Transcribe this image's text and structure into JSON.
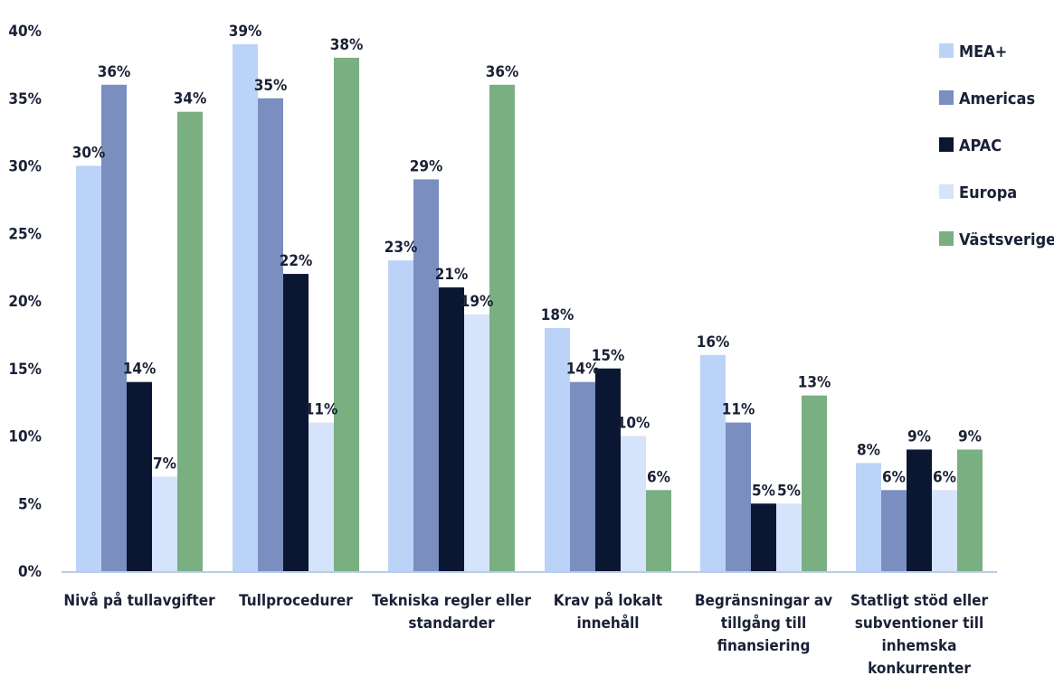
{
  "chart_data": {
    "type": "bar",
    "title": "",
    "xlabel": "",
    "ylabel": "",
    "ylim": [
      0,
      40
    ],
    "yticks": [
      "0%",
      "5%",
      "10%",
      "15%",
      "20%",
      "25%",
      "30%",
      "35%",
      "40%"
    ],
    "grid": false,
    "legend_position": "right",
    "categories": [
      "Nivå på tullavgifter",
      "Tullprocedurer",
      "Tekniska regler eller standarder",
      "Krav på lokalt innehåll",
      "Begränsningar av tillgång till finansiering",
      "Statligt stöd eller subventioner till inhemska konkurrenter"
    ],
    "category_lines": [
      [
        "Nivå på tullavgifter"
      ],
      [
        "Tullprocedurer"
      ],
      [
        "Tekniska regler eller",
        "standarder"
      ],
      [
        "Krav på lokalt",
        "innehåll"
      ],
      [
        "Begränsningar av",
        "tillgång till",
        "finansiering"
      ],
      [
        "Statligt stöd eller",
        "subventioner till",
        "inhemska",
        "konkurrenter"
      ]
    ],
    "series": [
      {
        "name": "MEA+",
        "color": "#bcd3f8",
        "values": [
          30,
          39,
          23,
          18,
          16,
          8
        ]
      },
      {
        "name": "Americas",
        "color": "#7a8fbf",
        "values": [
          36,
          35,
          29,
          14,
          11,
          6
        ]
      },
      {
        "name": "APAC",
        "color": "#0a1632",
        "values": [
          14,
          22,
          21,
          15,
          5,
          9
        ]
      },
      {
        "name": "Europa",
        "color": "#d5e4fa",
        "values": [
          7,
          11,
          19,
          10,
          5,
          6
        ]
      },
      {
        "name": "Västsverige",
        "color": "#7aaf82",
        "values": [
          34,
          38,
          36,
          6,
          13,
          9
        ]
      }
    ],
    "value_labels": [
      [
        "30%",
        "39%",
        "23%",
        "18%",
        "16%",
        "8%"
      ],
      [
        "36%",
        "35%",
        "29%",
        "14%",
        "11%",
        "6%"
      ],
      [
        "14%",
        "22%",
        "21%",
        "15%",
        "5%",
        "9%"
      ],
      [
        "7%",
        "11%",
        "19%",
        "10%",
        "5%",
        "6%"
      ],
      [
        "34%",
        "38%",
        "36%",
        "6%",
        "13%",
        "9%"
      ]
    ]
  }
}
